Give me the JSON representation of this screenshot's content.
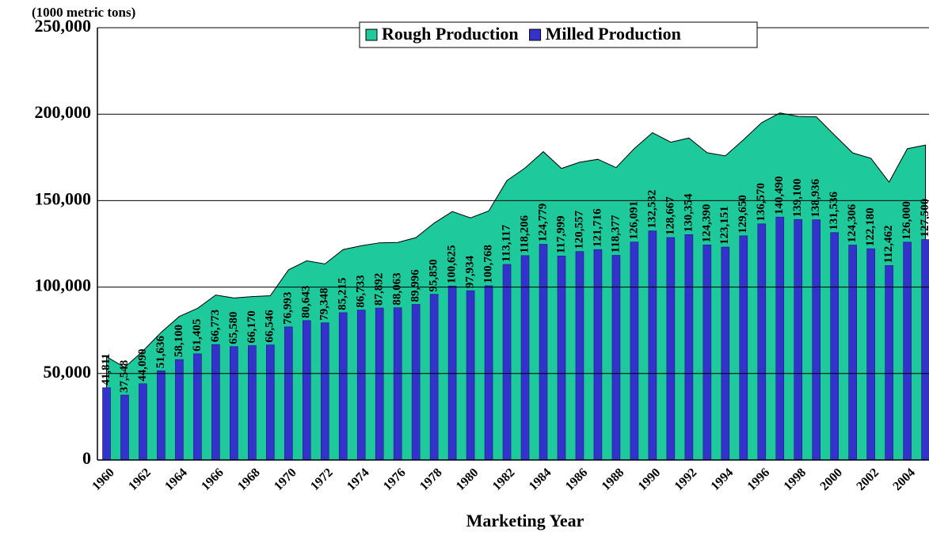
{
  "chart_data": {
    "type": "bar-area",
    "y_label": "(1000 metric tons)",
    "x_label": "Marketing Year",
    "categories": [
      "1960",
      null,
      "1962",
      null,
      "1964",
      null,
      "1966",
      null,
      "1968",
      null,
      "1970",
      null,
      "1972",
      null,
      "1974",
      null,
      "1976",
      null,
      "1978",
      null,
      "1980",
      null,
      "1982",
      null,
      "1984",
      null,
      "1986",
      null,
      "1988",
      null,
      "1990",
      null,
      "1992",
      null,
      "1994",
      null,
      "1996",
      null,
      "1998",
      null,
      "2000",
      null,
      "2002",
      null,
      "2004",
      null
    ],
    "series": [
      {
        "name": "Rough Production",
        "color": "#1ec99b",
        "type": "area",
        "values": [
          59700,
          53600,
          63000,
          73800,
          83000,
          87700,
          95400,
          93700,
          94500,
          95000,
          110000,
          115200,
          113400,
          121700,
          123900,
          125600,
          125800,
          128600,
          137000,
          143700,
          140000,
          144000,
          161600,
          168900,
          178300,
          168600,
          172200,
          173900,
          169100,
          180100,
          189300,
          183800,
          186200,
          177700,
          175900,
          185200,
          195100,
          200700,
          198700,
          198500,
          187900,
          177600,
          174500,
          160700,
          180000,
          182100
        ]
      },
      {
        "name": "Milled Production",
        "color": "#3333cc",
        "type": "bar",
        "values": [
          41811,
          37548,
          44090,
          51636,
          58100,
          61405,
          66773,
          65580,
          66170,
          66546,
          76993,
          80643,
          79348,
          85215,
          86733,
          87892,
          88063,
          89996,
          95850,
          100625,
          97934,
          100768,
          113117,
          118206,
          124779,
          117999,
          120557,
          121716,
          118377,
          126091,
          132532,
          128667,
          130354,
          124390,
          123151,
          129650,
          136570,
          140490,
          139100,
          138936,
          131536,
          124306,
          122180,
          112462,
          126000,
          127500
        ],
        "value_labels": [
          "41,811",
          "37,548",
          "44,090",
          "51,636",
          "58,100",
          "61,405",
          "66,773",
          "65,580",
          "66,170",
          "66,546",
          "76,993",
          "80,643",
          "79,348",
          "85,215",
          "86,733",
          "87,892",
          "88,063",
          "89,996",
          "95,850",
          "100,625",
          "97,934",
          "100,768",
          "113,117",
          "118,206",
          "124,779",
          "117,999",
          "120,557",
          "121,716",
          "118,377",
          "126,091",
          "132,532",
          "128,667",
          "130,354",
          "124,390",
          "123,151",
          "129,650",
          "136,570",
          "140,490",
          "139,100",
          "138,936",
          "131,536",
          "124,306",
          "122,180",
          "112,462",
          "126,000",
          "127,500"
        ]
      }
    ],
    "ylim": [
      0,
      250000
    ],
    "yticks": [
      0,
      {
        "value": 50000,
        "label": "50,000"
      },
      {
        "value": 100000,
        "label": "100,000"
      },
      {
        "value": 150000,
        "label": "150,000"
      },
      {
        "value": 200000,
        "label": "200,000"
      },
      {
        "value": 250000,
        "label": "250,000"
      }
    ],
    "grid": true,
    "legend": "top"
  }
}
